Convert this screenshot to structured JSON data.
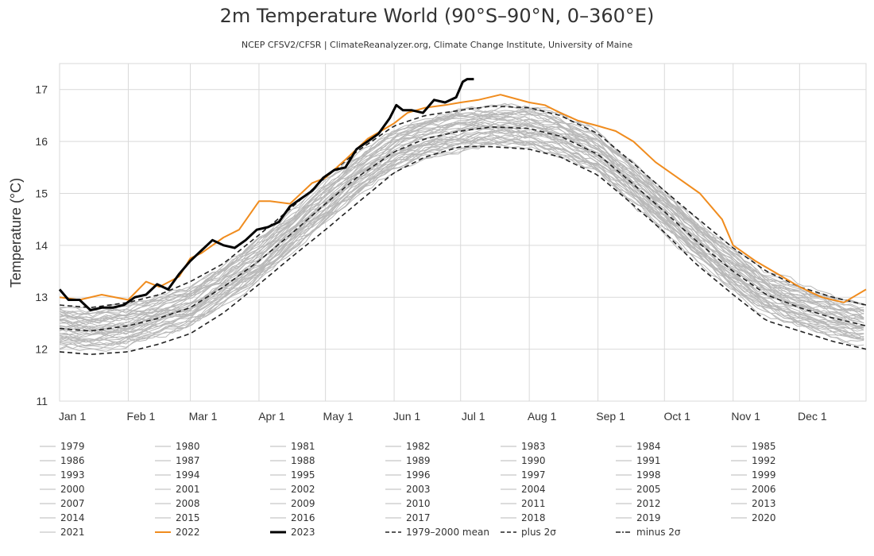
{
  "chart_data": {
    "type": "line",
    "title": "2m Temperature World (90°S–90°N, 0–360°E)",
    "subtitle": "NCEP CFSV2/CFSR | ClimateReanalyzer.org, Climate Change Institute, University of Maine",
    "xlabel": "",
    "ylabel": "Temperature (°C)",
    "ylim": [
      11,
      17.5
    ],
    "yticks": [
      11,
      12,
      13,
      14,
      15,
      16,
      17
    ],
    "xlim": [
      1,
      365
    ],
    "xticks": [
      {
        "label": "Jan 1",
        "day": 1
      },
      {
        "label": "Feb 1",
        "day": 32
      },
      {
        "label": "Mar 1",
        "day": 60
      },
      {
        "label": "Apr 1",
        "day": 91
      },
      {
        "label": "May 1",
        "day": 121
      },
      {
        "label": "Jun 1",
        "day": 152
      },
      {
        "label": "Jul 1",
        "day": 182
      },
      {
        "label": "Aug 1",
        "day": 213
      },
      {
        "label": "Sep 1",
        "day": 244
      },
      {
        "label": "Oct 1",
        "day": 274
      },
      {
        "label": "Nov 1",
        "day": 305
      },
      {
        "label": "Dec 1",
        "day": 335
      }
    ],
    "grid": true,
    "legend_position": "bottom",
    "years_gray": [
      "1979",
      "1980",
      "1981",
      "1982",
      "1983",
      "1984",
      "1985",
      "1986",
      "1987",
      "1988",
      "1989",
      "1990",
      "1991",
      "1992",
      "1993",
      "1994",
      "1995",
      "1996",
      "1997",
      "1998",
      "1999",
      "2000",
      "2001",
      "2002",
      "2003",
      "2004",
      "2005",
      "2006",
      "2007",
      "2008",
      "2009",
      "2010",
      "2011",
      "2012",
      "2013",
      "2014",
      "2015",
      "2016",
      "2017",
      "2018",
      "2019",
      "2020",
      "2021"
    ],
    "climatology_mean": {
      "name": "1979-2000 mean",
      "x": [
        1,
        15,
        32,
        46,
        60,
        75,
        91,
        105,
        121,
        135,
        152,
        166,
        182,
        196,
        213,
        227,
        244,
        258,
        274,
        288,
        305,
        320,
        335,
        350,
        365
      ],
      "y": [
        12.4,
        12.35,
        12.45,
        12.6,
        12.8,
        13.2,
        13.7,
        14.2,
        14.8,
        15.3,
        15.8,
        16.05,
        16.2,
        16.28,
        16.25,
        16.1,
        15.75,
        15.25,
        14.65,
        14.1,
        13.5,
        13.05,
        12.8,
        12.6,
        12.45
      ]
    },
    "plus_2sigma": {
      "name": "plus 2σ",
      "x": [
        1,
        15,
        32,
        46,
        60,
        75,
        91,
        105,
        121,
        135,
        152,
        166,
        182,
        196,
        213,
        227,
        244,
        258,
        274,
        288,
        305,
        320,
        335,
        350,
        365
      ],
      "y": [
        12.85,
        12.8,
        12.9,
        13.05,
        13.3,
        13.65,
        14.2,
        14.7,
        15.3,
        15.8,
        16.3,
        16.5,
        16.6,
        16.68,
        16.65,
        16.5,
        16.15,
        15.65,
        15.05,
        14.55,
        13.95,
        13.5,
        13.2,
        13.0,
        12.85
      ]
    },
    "minus_2sigma": {
      "name": "minus 2σ",
      "x": [
        1,
        15,
        32,
        46,
        60,
        75,
        91,
        105,
        121,
        135,
        152,
        166,
        182,
        196,
        213,
        227,
        244,
        258,
        274,
        288,
        305,
        320,
        335,
        350,
        365
      ],
      "y": [
        11.95,
        11.9,
        11.95,
        12.1,
        12.3,
        12.7,
        13.25,
        13.75,
        14.3,
        14.8,
        15.4,
        15.7,
        15.9,
        15.9,
        15.85,
        15.7,
        15.35,
        14.85,
        14.25,
        13.65,
        13.05,
        12.55,
        12.35,
        12.15,
        12.0
      ]
    },
    "series_2022": {
      "name": "2022",
      "x": [
        1,
        10,
        20,
        32,
        40,
        46,
        55,
        60,
        65,
        75,
        82,
        91,
        96,
        105,
        115,
        121,
        130,
        140,
        152,
        158,
        166,
        175,
        182,
        190,
        200,
        213,
        220,
        227,
        235,
        244,
        252,
        260,
        270,
        280,
        290,
        300,
        305,
        315,
        325,
        335,
        345,
        355,
        365
      ],
      "y": [
        13.0,
        12.95,
        13.05,
        12.95,
        13.3,
        13.2,
        13.4,
        13.75,
        13.85,
        14.15,
        14.3,
        14.85,
        14.85,
        14.8,
        15.2,
        15.3,
        15.65,
        16.05,
        16.35,
        16.55,
        16.65,
        16.7,
        16.75,
        16.8,
        16.9,
        16.75,
        16.7,
        16.55,
        16.4,
        16.3,
        16.2,
        16.0,
        15.6,
        15.3,
        15.0,
        14.5,
        14.0,
        13.7,
        13.45,
        13.2,
        13.0,
        12.9,
        13.15
      ]
    },
    "series_2023": {
      "name": "2023",
      "x": [
        1,
        5,
        10,
        15,
        20,
        25,
        30,
        35,
        40,
        45,
        50,
        55,
        60,
        65,
        70,
        75,
        80,
        85,
        90,
        95,
        100,
        105,
        110,
        115,
        120,
        125,
        130,
        135,
        140,
        145,
        150,
        153,
        156,
        160,
        165,
        170,
        175,
        180,
        183,
        185,
        188
      ],
      "y": [
        13.15,
        12.95,
        12.95,
        12.75,
        12.8,
        12.8,
        12.85,
        13.0,
        13.05,
        13.25,
        13.15,
        13.45,
        13.7,
        13.9,
        14.1,
        14.0,
        13.95,
        14.1,
        14.3,
        14.35,
        14.45,
        14.75,
        14.9,
        15.05,
        15.3,
        15.45,
        15.5,
        15.85,
        16.0,
        16.15,
        16.45,
        16.7,
        16.6,
        16.6,
        16.55,
        16.8,
        16.75,
        16.85,
        17.15,
        17.2,
        17.2
      ]
    }
  },
  "legend": {
    "entries": [
      {
        "label": "1979",
        "style": "gray"
      },
      {
        "label": "1980",
        "style": "gray"
      },
      {
        "label": "1981",
        "style": "gray"
      },
      {
        "label": "1982",
        "style": "gray"
      },
      {
        "label": "1983",
        "style": "gray"
      },
      {
        "label": "1984",
        "style": "gray"
      },
      {
        "label": "1985",
        "style": "gray"
      },
      {
        "label": "1986",
        "style": "gray"
      },
      {
        "label": "1987",
        "style": "gray"
      },
      {
        "label": "1988",
        "style": "gray"
      },
      {
        "label": "1989",
        "style": "gray"
      },
      {
        "label": "1990",
        "style": "gray"
      },
      {
        "label": "1991",
        "style": "gray"
      },
      {
        "label": "1992",
        "style": "gray"
      },
      {
        "label": "1993",
        "style": "gray"
      },
      {
        "label": "1994",
        "style": "gray"
      },
      {
        "label": "1995",
        "style": "gray"
      },
      {
        "label": "1996",
        "style": "gray"
      },
      {
        "label": "1997",
        "style": "gray"
      },
      {
        "label": "1998",
        "style": "gray"
      },
      {
        "label": "1999",
        "style": "gray"
      },
      {
        "label": "2000",
        "style": "gray"
      },
      {
        "label": "2001",
        "style": "gray"
      },
      {
        "label": "2002",
        "style": "gray"
      },
      {
        "label": "2003",
        "style": "gray"
      },
      {
        "label": "2004",
        "style": "gray"
      },
      {
        "label": "2005",
        "style": "gray"
      },
      {
        "label": "2006",
        "style": "gray"
      },
      {
        "label": "2007",
        "style": "gray"
      },
      {
        "label": "2008",
        "style": "gray"
      },
      {
        "label": "2009",
        "style": "gray"
      },
      {
        "label": "2010",
        "style": "gray"
      },
      {
        "label": "2011",
        "style": "gray"
      },
      {
        "label": "2012",
        "style": "gray"
      },
      {
        "label": "2013",
        "style": "gray"
      },
      {
        "label": "2014",
        "style": "gray"
      },
      {
        "label": "2015",
        "style": "gray"
      },
      {
        "label": "2016",
        "style": "gray"
      },
      {
        "label": "2017",
        "style": "gray"
      },
      {
        "label": "2018",
        "style": "gray"
      },
      {
        "label": "2019",
        "style": "gray"
      },
      {
        "label": "2020",
        "style": "gray"
      },
      {
        "label": "2021",
        "style": "gray"
      },
      {
        "label": "2022",
        "style": "orange"
      },
      {
        "label": "2023",
        "style": "black"
      },
      {
        "label": "1979–2000 mean",
        "style": "dashed"
      },
      {
        "label": "plus 2σ",
        "style": "dashed"
      },
      {
        "label": "minus 2σ",
        "style": "dashdot"
      }
    ]
  },
  "colors": {
    "gray_years": "#b8b8b8",
    "year_2022": "#f08c1e",
    "year_2023": "#000000",
    "climatology": "#222222",
    "grid": "#d9d9d9",
    "axis_text": "#333333"
  }
}
